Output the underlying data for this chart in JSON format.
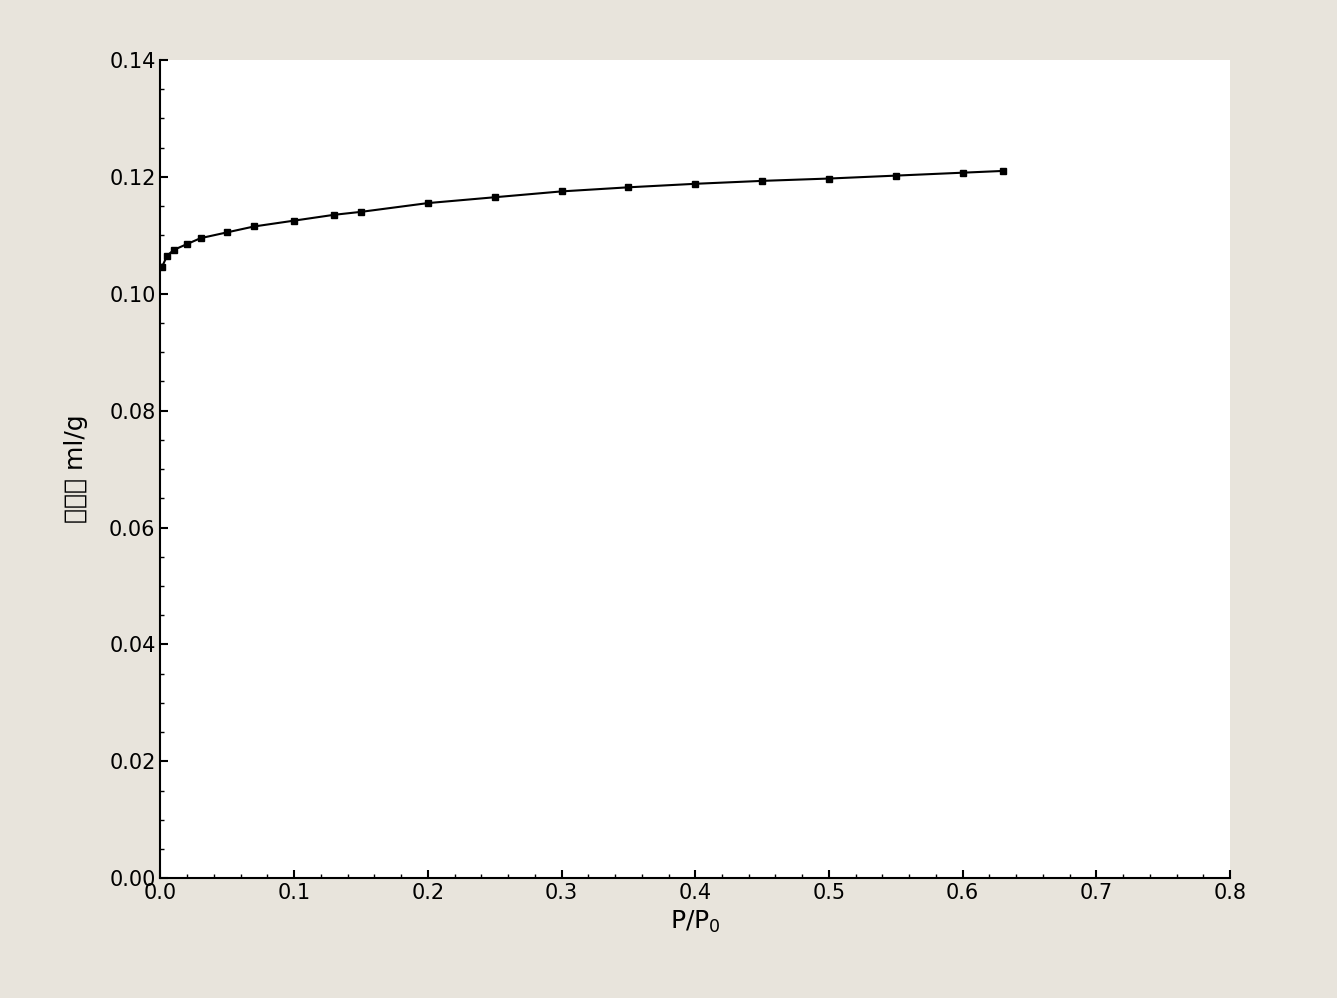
{
  "x": [
    0.001,
    0.005,
    0.01,
    0.02,
    0.03,
    0.05,
    0.07,
    0.1,
    0.13,
    0.15,
    0.2,
    0.25,
    0.3,
    0.35,
    0.4,
    0.45,
    0.5,
    0.55,
    0.6,
    0.63
  ],
  "y": [
    0.1045,
    0.1065,
    0.1075,
    0.1085,
    0.1095,
    0.1105,
    0.1115,
    0.1125,
    0.1135,
    0.114,
    0.1155,
    0.1165,
    0.1175,
    0.1182,
    0.1188,
    0.1193,
    0.1197,
    0.1202,
    0.1207,
    0.121
  ],
  "line_color": "#000000",
  "marker": "s",
  "marker_color": "#000000",
  "marker_size": 5,
  "line_width": 1.5,
  "xlabel": "P/P$_0$",
  "ylabel_chinese": "吸附量",
  "ylabel_unit": "ml/g",
  "xlim": [
    0.0,
    0.8
  ],
  "ylim": [
    0.0,
    0.14
  ],
  "xticks": [
    0.0,
    0.1,
    0.2,
    0.3,
    0.4,
    0.5,
    0.6,
    0.7,
    0.8
  ],
  "yticks": [
    0.0,
    0.02,
    0.04,
    0.06,
    0.08,
    0.1,
    0.12,
    0.14
  ],
  "tick_fontsize": 15,
  "label_fontsize": 18,
  "background_color": "#ffffff",
  "figure_background": "#e8e4dc"
}
